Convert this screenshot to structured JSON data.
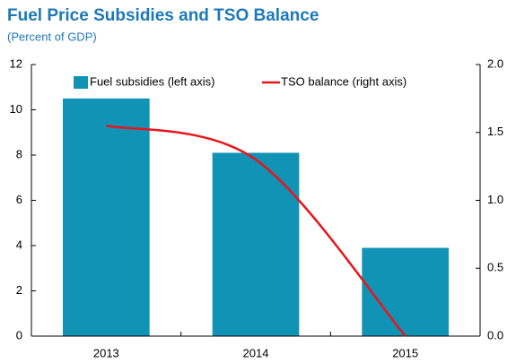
{
  "chart_data": {
    "type": "bar",
    "title": "Fuel Price Subsidies and TSO Balance",
    "subtitle": "(Percent of GDP)",
    "categories": [
      "2013",
      "2014",
      "2015"
    ],
    "series": [
      {
        "name": "Fuel subsidies (left axis)",
        "type": "bar",
        "color": "#1193b5",
        "values": [
          10.5,
          8.1,
          3.9
        ]
      },
      {
        "name": "TSO balance (right axis)",
        "type": "line",
        "axis": "y2",
        "color": "#e8151b",
        "values": [
          1.55,
          1.3,
          0.0
        ]
      }
    ],
    "ylim": [
      0,
      12
    ],
    "yticks": [
      0,
      2,
      4,
      6,
      8,
      10,
      12
    ],
    "y2lim": [
      0,
      2
    ],
    "y2ticks": [
      {
        "value": 0,
        "label": "0.0"
      },
      {
        "value": 0.5,
        "label": "0.5"
      },
      {
        "value": 1,
        "label": "1.0"
      },
      {
        "value": 1.5,
        "label": "1.5"
      },
      {
        "value": 2,
        "label": "2.0"
      }
    ],
    "legend": "top",
    "grid": false
  }
}
